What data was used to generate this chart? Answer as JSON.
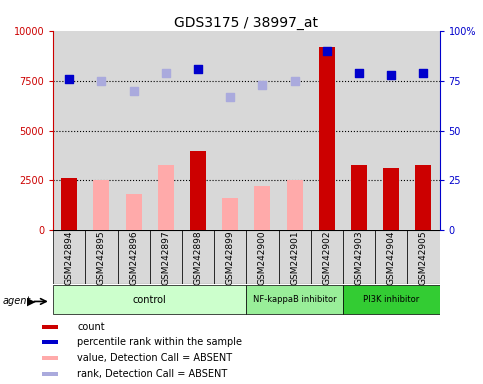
{
  "title": "GDS3175 / 38997_at",
  "samples": [
    "GSM242894",
    "GSM242895",
    "GSM242896",
    "GSM242897",
    "GSM242898",
    "GSM242899",
    "GSM242900",
    "GSM242901",
    "GSM242902",
    "GSM242903",
    "GSM242904",
    "GSM242905"
  ],
  "count_values": [
    2600,
    null,
    null,
    null,
    4000,
    null,
    null,
    null,
    9200,
    3300,
    3100,
    3300
  ],
  "count_absent_values": [
    null,
    2500,
    1800,
    3300,
    null,
    1600,
    2200,
    2500,
    null,
    null,
    null,
    null
  ],
  "percentile_present": [
    76,
    null,
    null,
    null,
    81,
    null,
    null,
    null,
    90,
    79,
    78,
    79
  ],
  "percentile_absent": [
    null,
    75,
    70,
    79,
    null,
    67,
    73,
    75,
    null,
    null,
    null,
    null
  ],
  "agent_groups": [
    {
      "label": "control",
      "start": 0,
      "end": 6,
      "color": "#ccffcc"
    },
    {
      "label": "NF-kappaB inhibitor",
      "start": 6,
      "end": 9,
      "color": "#99ee99"
    },
    {
      "label": "PI3K inhibitor",
      "start": 9,
      "end": 12,
      "color": "#33cc33"
    }
  ],
  "ylim_left": [
    0,
    10000
  ],
  "ylim_right": [
    0,
    100
  ],
  "yticks_left": [
    0,
    2500,
    5000,
    7500,
    10000
  ],
  "yticks_right": [
    0,
    25,
    50,
    75,
    100
  ],
  "bar_width": 0.5,
  "count_color": "#cc0000",
  "count_absent_color": "#ffaaaa",
  "percentile_color": "#0000cc",
  "percentile_absent_color": "#aaaadd",
  "hline_color": "#000000",
  "hline_positions": [
    2500,
    5000,
    7500
  ],
  "legend_items": [
    {
      "label": "count",
      "color": "#cc0000"
    },
    {
      "label": "percentile rank within the sample",
      "color": "#0000cc"
    },
    {
      "label": "value, Detection Call = ABSENT",
      "color": "#ffaaaa"
    },
    {
      "label": "rank, Detection Call = ABSENT",
      "color": "#aaaadd"
    }
  ],
  "marker_size": 40,
  "left_ylabel_color": "#cc0000",
  "right_ylabel_color": "#0000cc",
  "tick_fontsize": 7,
  "sample_label_fontsize": 6.5
}
